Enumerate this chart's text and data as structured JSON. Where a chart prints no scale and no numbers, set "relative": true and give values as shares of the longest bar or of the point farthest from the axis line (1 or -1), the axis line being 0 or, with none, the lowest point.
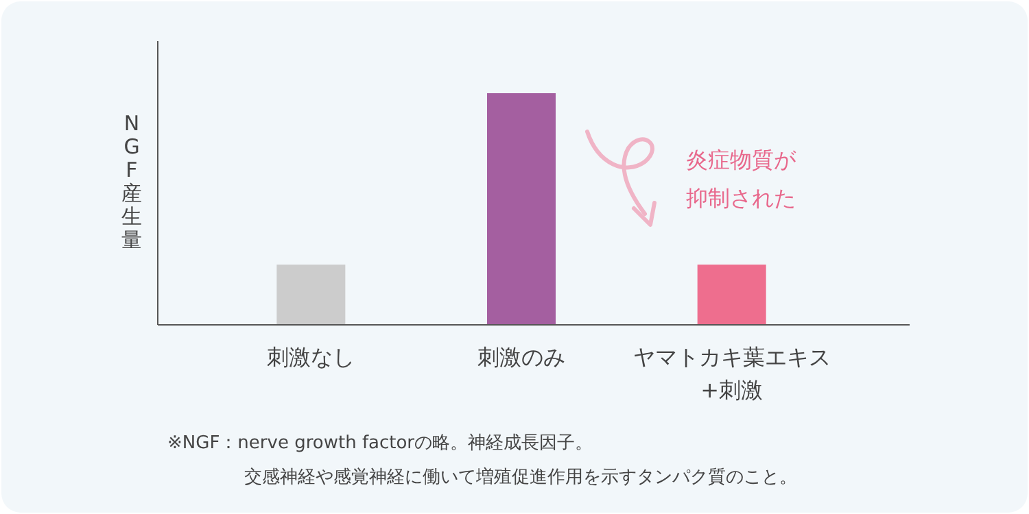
{
  "chart_data": {
    "type": "bar",
    "relative": true,
    "ylabel": "NGF産生量",
    "categories": [
      "刺激なし",
      "刺激のみ",
      "ヤマトカキ葉エキス\n+刺激"
    ],
    "values": [
      0.26,
      1,
      0.26
    ],
    "colors": [
      "#cccccc",
      "#a45fa0",
      "#ee6e8e"
    ],
    "annotations": [
      "炎症物質が",
      "抑制された",
      "※NGF：nerve growth factorの略。神経成長因子。",
      "交感神経や感覚神経に働いて増殖促進作用を示すタンパク質のこと。"
    ]
  }
}
